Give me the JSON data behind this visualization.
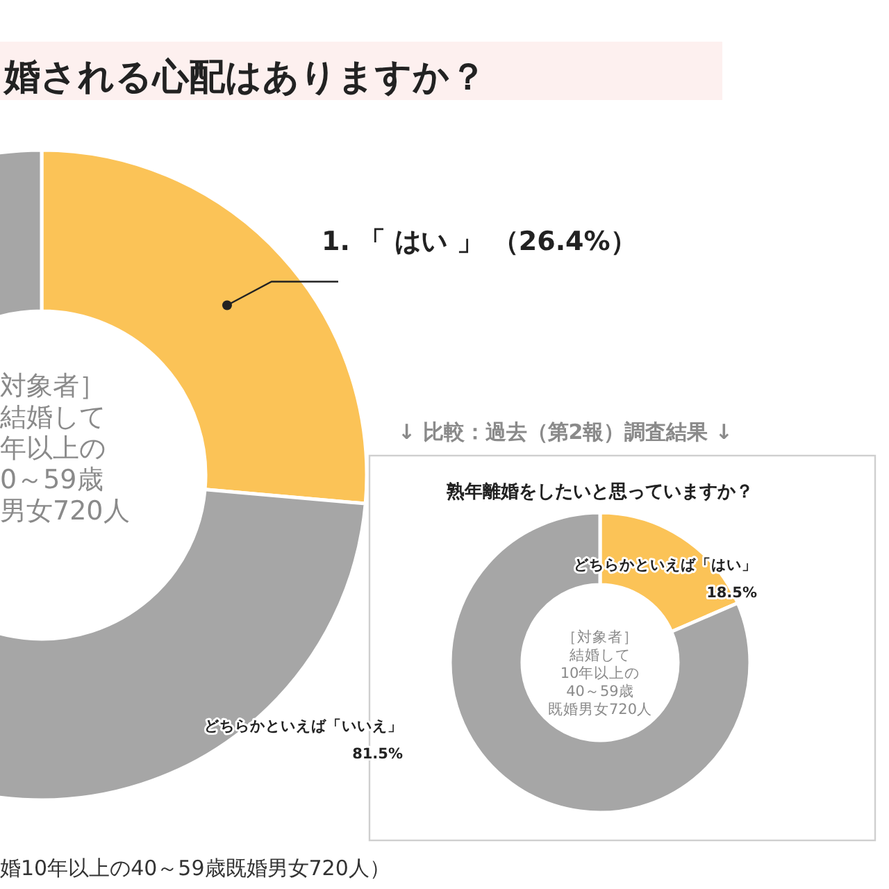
{
  "chart_data": [
    {
      "type": "donut",
      "title": "婚される心配はありますか？",
      "categories": [
        "1. 「 はい 」",
        null
      ],
      "values": [
        26.4,
        73.6
      ],
      "colors": [
        "#fbc357",
        "#a6a6a6"
      ],
      "value_labels": [
        "（26.4%）",
        null
      ],
      "annotations": [
        "対象者］",
        "結婚して",
        "年以上の",
        "0～59歳",
        "男女720人",
        "婚10年以上の40～59歳既婚男女720人）"
      ]
    },
    {
      "type": "donut",
      "subtitle": "↓ 比較：過去（第2報）調査結果 ↓",
      "title": "熟年離婚をしたいと思っていますか？",
      "categories": [
        "どちらかといえば「はい」",
        "どちらかといえば「いいえ」"
      ],
      "values": [
        18.5,
        81.5
      ],
      "colors": [
        "#fbc357",
        "#a6a6a6"
      ],
      "value_labels": [
        "18.5%",
        "81.5%"
      ],
      "annotations": [
        "［対象者］",
        "結婚して",
        "10年以上の",
        "40～59歳",
        "既婚男女720人"
      ]
    }
  ]
}
